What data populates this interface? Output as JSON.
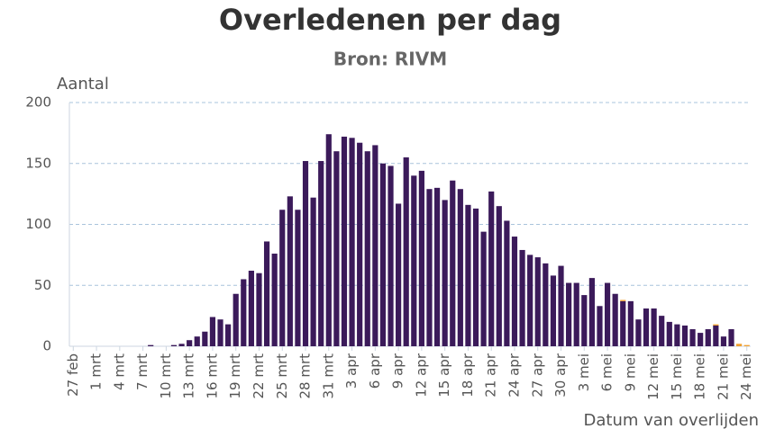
{
  "chart_data": {
    "type": "bar",
    "stacked": true,
    "title": "Overledenen per dag",
    "subtitle": "Bron: RIVM",
    "y_label": "Aantal",
    "x_label": "Datum van overlijden",
    "categories": [
      "27 feb",
      null,
      null,
      "1 mrt",
      null,
      null,
      "4 mrt",
      null,
      null,
      "7 mrt",
      null,
      null,
      "10 mrt",
      null,
      null,
      "13 mrt",
      null,
      null,
      "16 mrt",
      null,
      null,
      "19 mrt",
      null,
      null,
      "22 mrt",
      null,
      null,
      "25 mrt",
      null,
      null,
      "28 mrt",
      null,
      null,
      "31 mrt",
      null,
      null,
      "3 apr",
      null,
      null,
      "6 apr",
      null,
      null,
      "9 apr",
      null,
      null,
      "12 apr",
      null,
      null,
      "15 apr",
      null,
      null,
      "18 apr",
      null,
      null,
      "21 apr",
      null,
      null,
      "24 apr",
      null,
      null,
      "27 apr",
      null,
      null,
      "30 apr",
      null,
      null,
      "3 mei",
      null,
      null,
      "6 mei",
      null,
      null,
      "9 mei",
      null,
      null,
      "12 mei",
      null,
      null,
      "15 mei",
      null,
      null,
      "18 mei",
      null,
      null,
      "21 mei",
      null,
      null,
      "24 mei"
    ],
    "series": [
      {
        "color": "#3b1a5a",
        "values": [
          0,
          0,
          0,
          0,
          0,
          0,
          0,
          0,
          0,
          0,
          1,
          0,
          0,
          1,
          2,
          5,
          8,
          12,
          24,
          22,
          18,
          43,
          55,
          62,
          60,
          86,
          76,
          112,
          123,
          112,
          152,
          122,
          152,
          174,
          160,
          172,
          171,
          167,
          160,
          165,
          150,
          148,
          117,
          155,
          140,
          144,
          129,
          130,
          120,
          136,
          129,
          116,
          113,
          94,
          127,
          115,
          103,
          90,
          79,
          75,
          73,
          68,
          58,
          66,
          52,
          52,
          42,
          56,
          33,
          52,
          43,
          37,
          37,
          22,
          31,
          31,
          25,
          20,
          18,
          17,
          14,
          11,
          14,
          17,
          8,
          14,
          0,
          0
        ]
      },
      {
        "color": "#f0a030",
        "values": [
          0,
          0,
          0,
          0,
          0,
          0,
          0,
          0,
          0,
          0,
          0,
          0,
          0,
          0,
          0,
          0,
          0,
          0,
          0,
          0,
          0,
          0,
          0,
          0,
          0,
          0,
          0,
          0,
          0,
          0,
          0,
          0,
          0,
          0,
          0,
          0,
          0,
          0,
          0,
          0,
          0,
          0,
          0,
          0,
          0,
          0,
          0,
          0,
          0,
          0,
          0,
          0,
          0,
          0,
          0,
          0,
          0,
          0,
          0,
          0,
          0,
          0,
          0,
          0,
          0,
          0,
          0,
          0,
          0,
          0,
          0,
          1,
          0,
          0,
          0,
          0,
          0,
          0,
          0,
          0,
          0,
          0,
          0,
          1,
          0,
          0,
          2,
          1
        ]
      }
    ],
    "ylim": [
      0,
      200
    ],
    "yticks": [
      0,
      50,
      100,
      150,
      200
    ],
    "grid": true,
    "grid_color": "#a9c4dc"
  }
}
